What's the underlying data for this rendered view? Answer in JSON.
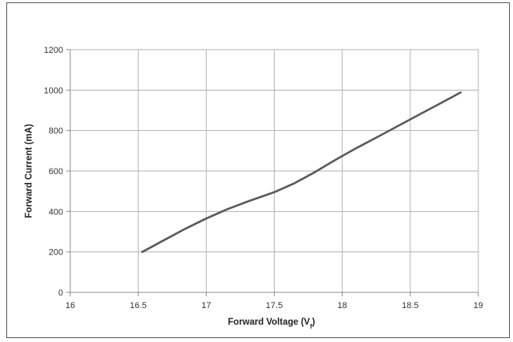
{
  "chart_data": {
    "type": "line",
    "title": "",
    "xlabel_main": "Forward Voltage (V",
    "xlabel_sub": "f",
    "xlabel_close": ")",
    "ylabel": "Forward Current (mA)",
    "xlim": [
      16,
      19
    ],
    "ylim": [
      0,
      1200
    ],
    "xticks": [
      16,
      16.5,
      17,
      17.5,
      18,
      18.5,
      19
    ],
    "yticks": [
      0,
      200,
      400,
      600,
      800,
      1000,
      1200
    ],
    "grid": true,
    "legend": "none",
    "line_color": "#595959",
    "grid_color": "#b3b3b3",
    "series": [
      {
        "x": [
          16.53,
          16.7,
          16.85,
          17.0,
          17.15,
          17.3,
          17.5,
          17.65,
          17.8,
          17.95,
          18.1,
          18.3,
          18.5,
          18.7,
          18.87
        ],
        "values": [
          200,
          262,
          316,
          365,
          410,
          448,
          495,
          540,
          595,
          655,
          712,
          783,
          855,
          927,
          988
        ]
      }
    ]
  }
}
